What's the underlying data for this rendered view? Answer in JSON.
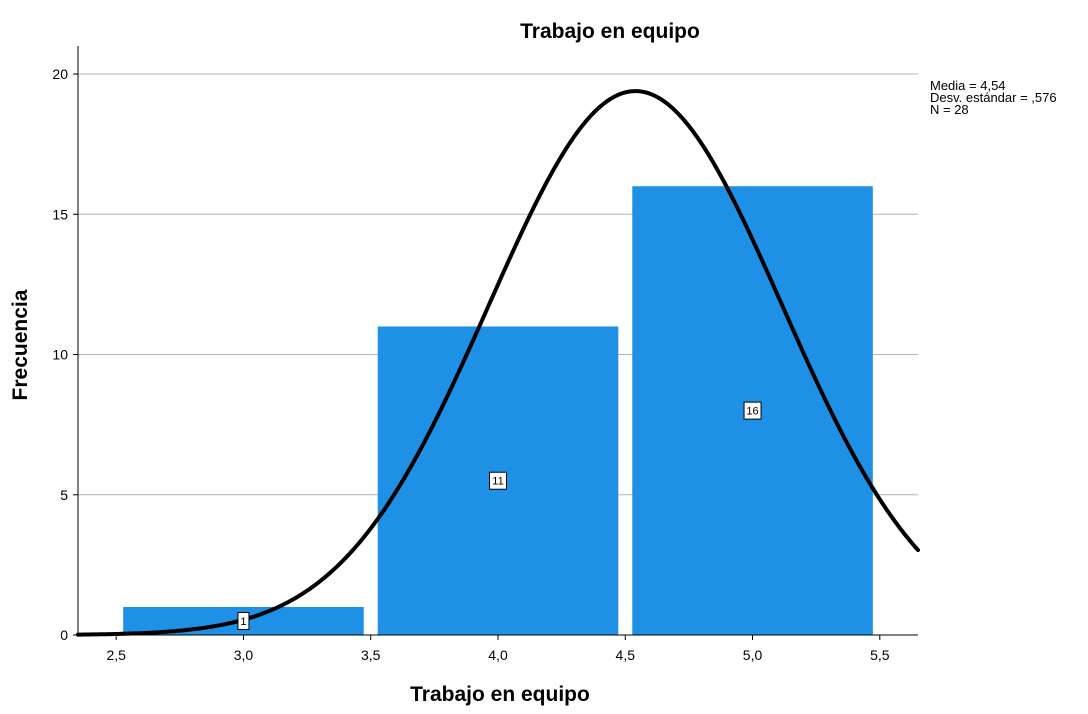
{
  "chart_data": {
    "type": "bar",
    "title": "Trabajo en equipo",
    "xlabel": "Trabajo en equipo",
    "ylabel": "Frecuencia",
    "xlim": [
      2.35,
      5.65
    ],
    "ylim": [
      0,
      21
    ],
    "x_ticks": [
      2.5,
      3.0,
      3.5,
      4.0,
      4.5,
      5.0,
      5.5
    ],
    "x_tick_labels": [
      "2,5",
      "3,0",
      "3,5",
      "4,0",
      "4,5",
      "5,0",
      "5,5"
    ],
    "y_ticks": [
      0,
      5,
      10,
      15,
      20
    ],
    "y_tick_labels": [
      "0",
      "5",
      "10",
      "15",
      "20"
    ],
    "grid": "horizontal",
    "bars": [
      {
        "x_start": 2.5,
        "x_end": 3.5,
        "value": 1,
        "label": "1"
      },
      {
        "x_start": 3.5,
        "x_end": 4.5,
        "value": 11,
        "label": "11"
      },
      {
        "x_start": 4.5,
        "x_end": 5.5,
        "value": 16,
        "label": "16"
      }
    ],
    "normal_curve": {
      "mean": 4.54,
      "sd": 0.576,
      "n": 28,
      "bin_width": 1.0
    },
    "stats": [
      "Media = 4,54",
      "Desv. estándar = ,576",
      "N = 28"
    ],
    "stats_position": "top-right",
    "colors": {
      "bar": "#1e90e6",
      "curve": "#000000",
      "grid": "#b4b4b4",
      "axis": "#000000"
    }
  }
}
